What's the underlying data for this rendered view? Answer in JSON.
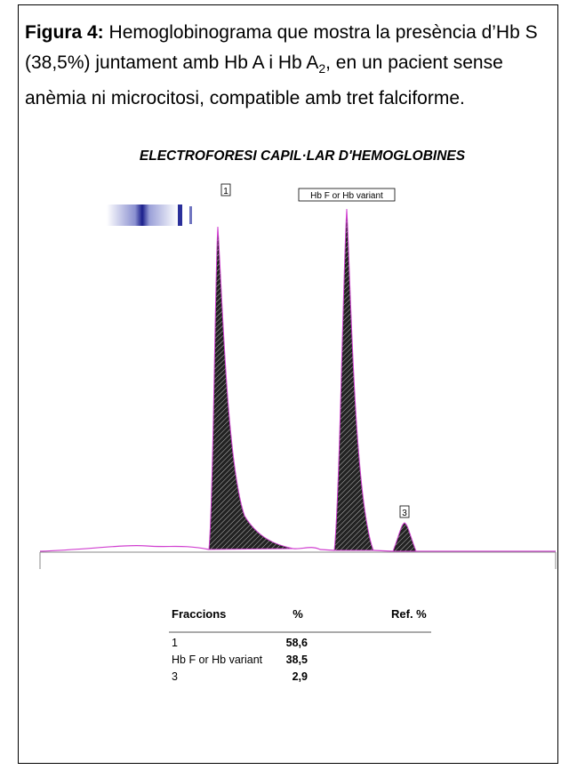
{
  "caption": {
    "label": "Figura 4:",
    "text_before": " Hemoglobinograma que mostra la presència d’Hb S (38,5%) juntament amb Hb A i Hb A",
    "subscript": "2",
    "text_after": ", en un pacient sense anèmia ni microcitosi, compatible amb tret falciforme."
  },
  "figure": {
    "title": "ELECTROFORESI CAPIL·LAR D'HEMOGLOBINES",
    "peak_labels": [
      "1",
      "Hb F or Hb variant",
      "3"
    ]
  },
  "table": {
    "header": [
      "Fraccions",
      "%",
      "Ref. %"
    ],
    "rows": [
      [
        "1",
        "58,6"
      ],
      [
        "Hb F or Hb variant",
        "38,5"
      ],
      [
        "3",
        "2,9"
      ]
    ]
  }
}
